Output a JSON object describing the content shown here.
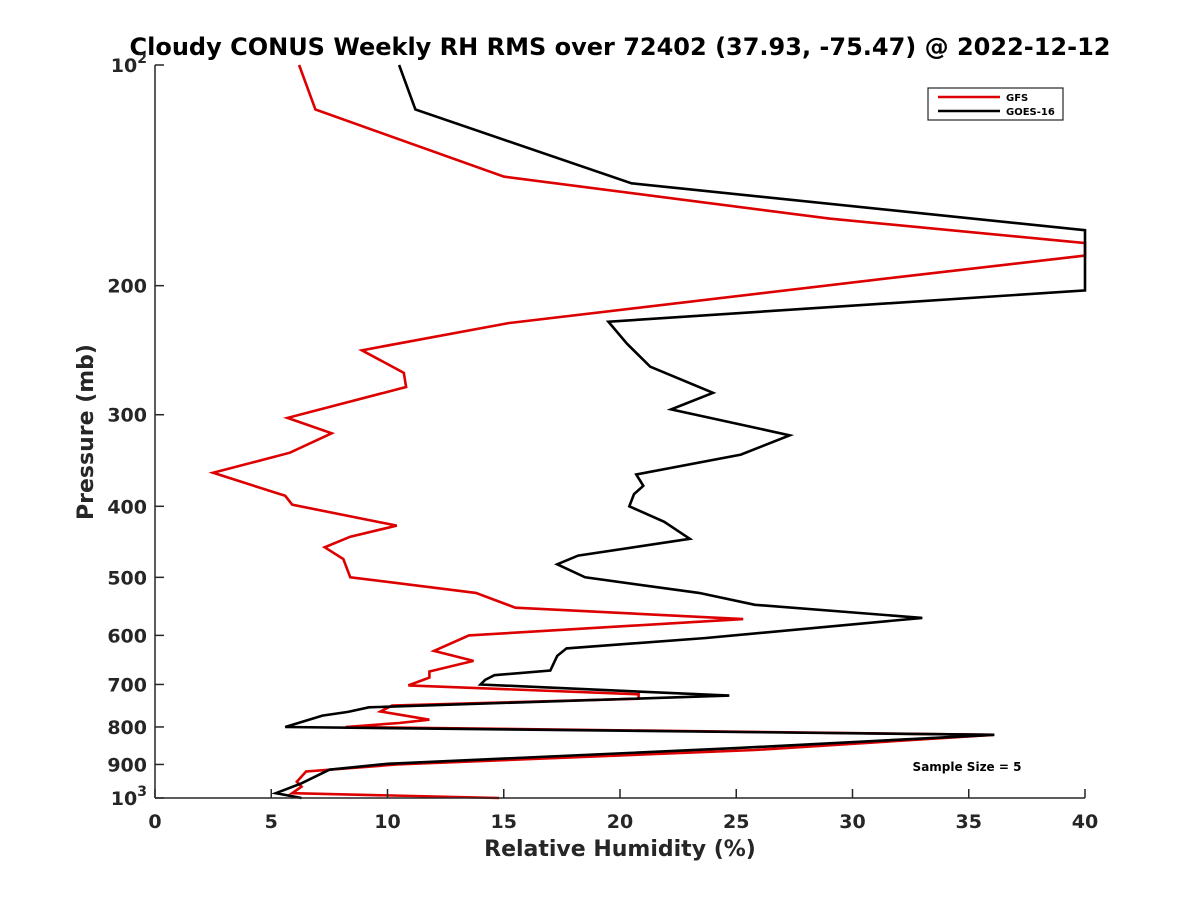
{
  "chart_data": {
    "type": "line",
    "title": "Cloudy CONUS Weekly RH RMS over 72402 (37.93, -75.47) @ 2022-12-12",
    "xlabel": "Relative Humidity (%)",
    "ylabel": "Pressure (mb)",
    "xlim": [
      0,
      40
    ],
    "ylim": [
      100,
      1000
    ],
    "y_scale": "log",
    "y_reversed": true,
    "grid": false,
    "legend_position": "top-right",
    "x_ticks": [
      0,
      5,
      10,
      15,
      20,
      25,
      30,
      35,
      40
    ],
    "x_tick_labels": [
      "0",
      "5",
      "10",
      "15",
      "20",
      "25",
      "30",
      "35",
      "40"
    ],
    "y_ticks": [
      100,
      200,
      300,
      400,
      500,
      600,
      700,
      800,
      900,
      1000
    ],
    "y_tick_labels": [
      "10^2",
      "200",
      "300",
      "400",
      "500",
      "600",
      "700",
      "800",
      "900",
      "10^3"
    ],
    "annotation": "Sample Size = 5",
    "series": [
      {
        "name": "GFS",
        "color": "#dd0000",
        "points": [
          [
            6.2,
            100
          ],
          [
            6.9,
            115
          ],
          [
            15.0,
            142
          ],
          [
            29.0,
            162
          ],
          [
            40.0,
            175
          ],
          [
            40.0,
            182
          ],
          [
            31.8,
            195
          ],
          [
            15.2,
            225
          ],
          [
            8.9,
            245
          ],
          [
            10.7,
            263
          ],
          [
            10.8,
            275
          ],
          [
            5.7,
            303
          ],
          [
            7.6,
            318
          ],
          [
            5.8,
            338
          ],
          [
            2.5,
            360
          ],
          [
            5.6,
            387
          ],
          [
            5.9,
            398
          ],
          [
            10.4,
            425
          ],
          [
            8.4,
            440
          ],
          [
            7.3,
            455
          ],
          [
            8.1,
            472
          ],
          [
            8.4,
            500
          ],
          [
            13.8,
            525
          ],
          [
            15.5,
            550
          ],
          [
            25.3,
            570
          ],
          [
            13.5,
            600
          ],
          [
            12.0,
            630
          ],
          [
            13.7,
            650
          ],
          [
            11.8,
            672
          ],
          [
            11.8,
            685
          ],
          [
            10.9,
            702
          ],
          [
            20.8,
            722
          ],
          [
            20.8,
            732
          ],
          [
            10.2,
            748
          ],
          [
            9.7,
            762
          ],
          [
            11.8,
            782
          ],
          [
            10.5,
            790
          ],
          [
            8.2,
            800
          ],
          [
            36.1,
            820
          ],
          [
            25.8,
            860
          ],
          [
            10.4,
            900
          ],
          [
            6.5,
            920
          ],
          [
            6.1,
            950
          ],
          [
            6.3,
            965
          ],
          [
            5.9,
            985
          ],
          [
            14.8,
            1000
          ]
        ]
      },
      {
        "name": "GOES-16",
        "color": "#000000",
        "points": [
          [
            10.5,
            100
          ],
          [
            11.2,
            115
          ],
          [
            20.5,
            145
          ],
          [
            40.0,
            168
          ],
          [
            40.0,
            203
          ],
          [
            19.5,
            224
          ],
          [
            20.3,
            240
          ],
          [
            21.3,
            258
          ],
          [
            24.0,
            280
          ],
          [
            22.2,
            295
          ],
          [
            27.3,
            320
          ],
          [
            25.2,
            340
          ],
          [
            20.7,
            362
          ],
          [
            21.0,
            375
          ],
          [
            20.6,
            385
          ],
          [
            20.4,
            400
          ],
          [
            21.9,
            420
          ],
          [
            23.0,
            443
          ],
          [
            18.2,
            467
          ],
          [
            17.3,
            480
          ],
          [
            18.5,
            500
          ],
          [
            23.4,
            525
          ],
          [
            25.8,
            545
          ],
          [
            33.0,
            568
          ],
          [
            23.7,
            605
          ],
          [
            17.7,
            625
          ],
          [
            17.3,
            640
          ],
          [
            17.1,
            660
          ],
          [
            17.0,
            670
          ],
          [
            14.6,
            680
          ],
          [
            14.2,
            690
          ],
          [
            14.0,
            700
          ],
          [
            24.7,
            725
          ],
          [
            9.2,
            752
          ],
          [
            8.3,
            763
          ],
          [
            7.2,
            772
          ],
          [
            5.6,
            800
          ],
          [
            36.1,
            820
          ],
          [
            25.0,
            855
          ],
          [
            10.0,
            898
          ],
          [
            7.5,
            915
          ],
          [
            6.3,
            955
          ],
          [
            5.2,
            985
          ],
          [
            6.3,
            1000
          ]
        ]
      }
    ]
  }
}
